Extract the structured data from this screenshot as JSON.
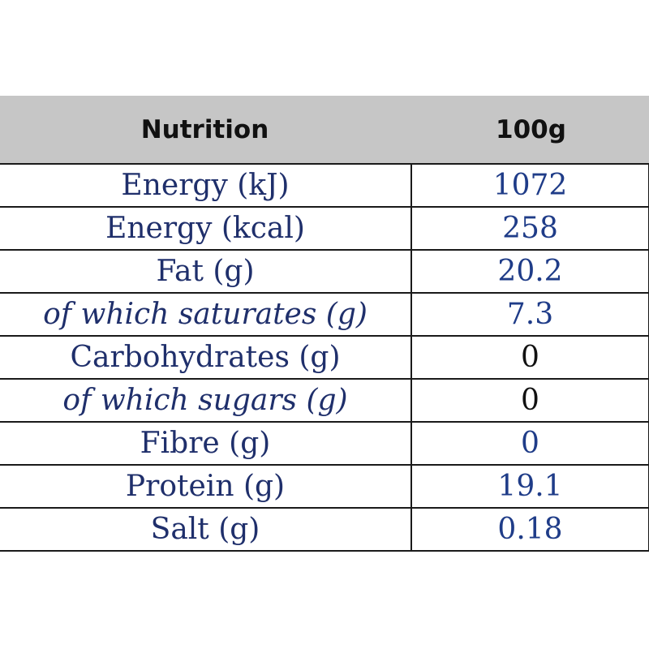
{
  "table": {
    "headers": {
      "nutrient": "Nutrition",
      "per": "100g"
    },
    "rows": [
      {
        "label": "Energy (kJ)",
        "value": "1072"
      },
      {
        "label": "Energy (kcal)",
        "value": "258"
      },
      {
        "label": "Fat (g)",
        "value": "20.2"
      },
      {
        "label": "of which saturates (g)",
        "value": "7.3"
      },
      {
        "label": "Carbohydrates (g)",
        "value": "0"
      },
      {
        "label": "of which sugars (g)",
        "value": "0"
      },
      {
        "label": "Fibre (g)",
        "value": "0"
      },
      {
        "label": "Protein (g)",
        "value": "19.1"
      },
      {
        "label": "Salt (g)",
        "value": "0.18"
      }
    ]
  },
  "colors": {
    "header_background": "#c6c6c6",
    "label_text": "#1f2f6b",
    "value_text": "#1f3c88",
    "grid_lines": "#1a1a1a"
  }
}
